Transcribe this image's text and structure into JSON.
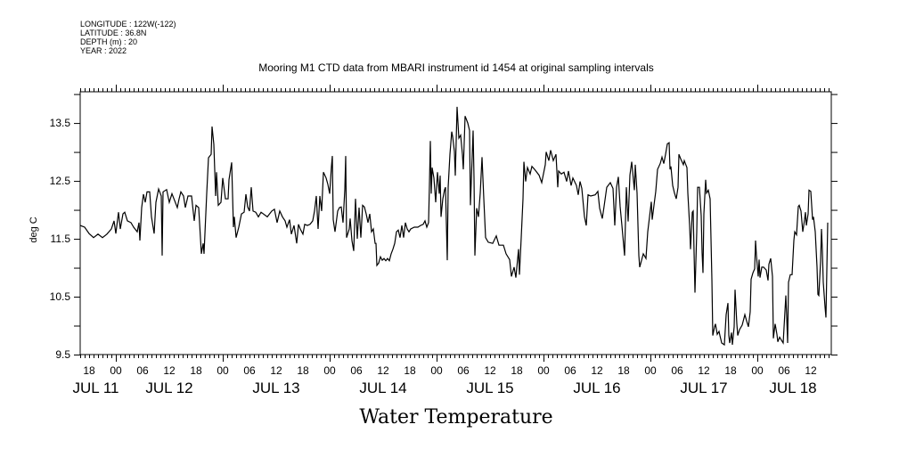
{
  "header": {
    "longitude": "LONGITUDE : 122W(-122)",
    "latitude": "LATITUDE : 36.8N",
    "depth": "DEPTH (m) : 20",
    "year": "YEAR : 2022"
  },
  "chart_data": {
    "type": "line",
    "title": "Mooring M1 CTD data from MBARI instrument id 1454 at original sampling intervals",
    "xlabel": "Water Temperature",
    "ylabel": "deg C",
    "x_units": "hours since JUL 11 00:00",
    "xlim": [
      16,
      184.6
    ],
    "ylim": [
      9.5,
      14.04
    ],
    "y_ticks": [
      "9.5",
      "10.5",
      "11.5",
      "12.5",
      "13.5"
    ],
    "y_minor_step": 0.5,
    "x_tick_labels": [
      {
        "h": 18,
        "label": "18"
      },
      {
        "h": 24,
        "label": "00"
      },
      {
        "h": 30,
        "label": "06"
      },
      {
        "h": 36,
        "label": "12"
      },
      {
        "h": 42,
        "label": "18"
      },
      {
        "h": 48,
        "label": "00"
      },
      {
        "h": 54,
        "label": "06"
      },
      {
        "h": 60,
        "label": "12"
      },
      {
        "h": 66,
        "label": "18"
      },
      {
        "h": 72,
        "label": "00"
      },
      {
        "h": 78,
        "label": "06"
      },
      {
        "h": 84,
        "label": "12"
      },
      {
        "h": 90,
        "label": "18"
      },
      {
        "h": 96,
        "label": "00"
      },
      {
        "h": 102,
        "label": "06"
      },
      {
        "h": 108,
        "label": "12"
      },
      {
        "h": 114,
        "label": "18"
      },
      {
        "h": 120,
        "label": "00"
      },
      {
        "h": 126,
        "label": "06"
      },
      {
        "h": 132,
        "label": "12"
      },
      {
        "h": 138,
        "label": "18"
      },
      {
        "h": 144,
        "label": "00"
      },
      {
        "h": 150,
        "label": "06"
      },
      {
        "h": 156,
        "label": "12"
      },
      {
        "h": 162,
        "label": "18"
      },
      {
        "h": 168,
        "label": "00"
      },
      {
        "h": 174,
        "label": "06"
      },
      {
        "h": 180,
        "label": "12"
      }
    ],
    "date_labels": [
      {
        "h": 19.5,
        "label": "JUL 11"
      },
      {
        "h": 36,
        "label": "JUL 12"
      },
      {
        "h": 60,
        "label": "JUL 13"
      },
      {
        "h": 84,
        "label": "JUL 14"
      },
      {
        "h": 108,
        "label": "JUL 15"
      },
      {
        "h": 132,
        "label": "JUL 16"
      },
      {
        "h": 156,
        "label": "JUL 17"
      },
      {
        "h": 176,
        "label": "JUL 18"
      }
    ],
    "series": [
      {
        "name": "Water Temperature",
        "x": [
          16,
          17,
          18,
          19,
          20,
          21,
          22,
          23,
          23.6,
          24,
          24.6,
          25,
          25.6,
          26,
          26.6,
          27.4,
          28,
          28.8,
          29.2,
          29.4,
          29.8,
          30.2,
          30.6,
          31,
          31.6,
          32,
          32.6,
          33,
          33.6,
          34.2,
          34.4,
          34.6,
          35.4,
          36,
          36.6,
          37.2,
          37.8,
          38.2,
          38.6,
          39.2,
          39.6,
          40.2,
          41,
          41.6,
          42,
          42.6,
          43.2,
          43.6,
          43.8,
          44.4,
          44.8,
          45.4,
          45.6,
          46,
          46.4,
          46.6,
          47,
          47.6,
          48,
          48.6,
          49.2,
          49.4,
          50,
          50.4,
          50.6,
          51,
          51.6,
          52.2,
          52.8,
          53.2,
          53.6,
          54,
          54.4,
          54.8,
          55.4,
          56,
          56.6,
          58,
          59,
          59.6,
          60.2,
          60.8,
          61.4,
          62,
          62.4,
          63,
          63.4,
          64,
          64.6,
          65,
          65.4,
          66,
          66.4,
          67,
          67.6,
          68.2,
          68.6,
          69,
          69.4,
          69.8,
          70.2,
          70.6,
          71.2,
          71.6,
          72,
          72.4,
          72.6,
          72.8,
          73.2,
          73.8,
          74.2,
          74.6,
          75,
          75.4,
          75.6,
          75.8,
          76.4,
          76.6,
          77,
          77.4,
          77.8,
          78.2,
          78.6,
          79,
          79.4,
          79.8,
          80.2,
          80.6,
          81,
          81.4,
          81.8,
          82.2,
          82.4,
          82.6,
          83,
          83.4,
          83.8,
          84.2,
          84.6,
          85,
          85.4,
          85.8,
          86.2,
          86.6,
          87,
          87.4,
          87.8,
          88.2,
          88.6,
          89,
          89.4,
          89.8,
          90.2,
          91,
          91.8,
          92.4,
          93,
          93.4,
          93.8,
          94.2,
          94.4,
          94.6,
          94.8,
          95,
          95.4,
          95.8,
          96.2,
          96.6,
          96.8,
          97,
          97.4,
          97.8,
          98,
          98.4,
          98.6,
          99,
          99.4,
          99.6,
          100,
          100.2,
          100.6,
          101,
          101.4,
          101.8,
          102,
          102.4,
          103,
          103.4,
          103.6,
          104.2,
          104.4,
          104.6,
          105,
          105.4,
          105.8,
          106.2,
          106.6,
          107,
          107.6,
          108.6,
          109.4,
          110,
          111,
          111.6,
          112.4,
          112.8,
          113.4,
          113.8,
          114.4,
          114.6,
          115,
          115.4,
          115.6,
          116,
          116.4,
          117,
          117.4,
          118,
          119,
          119.6,
          120.4,
          120.6,
          121.2,
          121.6,
          122.2,
          122.8,
          123.2,
          123.4,
          124,
          124.6,
          125.2,
          125.6,
          126.2,
          126.6,
          127.4,
          127.8,
          128.2,
          128.6,
          129.2,
          129.6,
          130,
          130.6,
          131.6,
          132.2,
          132.6,
          133.2,
          133.6,
          134.2,
          135,
          135.6,
          136,
          136.4,
          136.8,
          137.2,
          137.6,
          138.2,
          138.6,
          139,
          139.4,
          139.8,
          140.4,
          140.6,
          141,
          141.4,
          141.6,
          142.4,
          143,
          143.4,
          143.8,
          144.2,
          144.4,
          144.8,
          145.2,
          145.6,
          146.2,
          146.6,
          147,
          147.4,
          147.8,
          148.2,
          148.4,
          148.6,
          149,
          149.4,
          149.8,
          150.2,
          150.4,
          150.8,
          151.4,
          151.6,
          152.2,
          152.4,
          152.8,
          153,
          153.4,
          153.6,
          153.8,
          154,
          154.4,
          154.6,
          155,
          155.4,
          155.6,
          155.8,
          156,
          156.4,
          156.6,
          157,
          157.4,
          157.8,
          158,
          158.4,
          158.6,
          159,
          159.4,
          159.6,
          160,
          160.6,
          161,
          161.4,
          161.6,
          161.8,
          162.2,
          162.4,
          162.8,
          163,
          163.4,
          163.6,
          164,
          164.6,
          165.2,
          165.6,
          166,
          166.4,
          166.6,
          167,
          167.4,
          167.6,
          167.8,
          168.2,
          168.4,
          168.6,
          169,
          169.4,
          170,
          170.4,
          170.6,
          171,
          171.4,
          171.6,
          172,
          172.4,
          172.6,
          173,
          173.4,
          173.8,
          174.4,
          174.6,
          174.8,
          175,
          175.4,
          175.8,
          176.2,
          176.4,
          176.8,
          177.2,
          177.4,
          177.8,
          178.2,
          178.6,
          178.8,
          179,
          179.4,
          179.6,
          180,
          180.4,
          180.6,
          181,
          181.4,
          181.6,
          181.8,
          182.2,
          182.4,
          182.6,
          182.8,
          183.2,
          183.4,
          183.6,
          183.8
        ],
        "y": [
          11.73,
          11.7,
          11.59,
          11.52,
          11.58,
          11.52,
          11.58,
          11.67,
          11.81,
          11.59,
          11.96,
          11.67,
          11.93,
          11.96,
          11.81,
          11.78,
          11.7,
          11.62,
          11.78,
          11.47,
          12.04,
          12.27,
          12.13,
          12.31,
          12.31,
          11.88,
          11.59,
          12.13,
          12.36,
          12.24,
          11.21,
          12.31,
          12.35,
          12.13,
          12.28,
          12.16,
          12.04,
          12.19,
          12.31,
          12.24,
          12.04,
          12.24,
          12.24,
          11.81,
          12.08,
          12.04,
          11.24,
          11.42,
          11.24,
          12.28,
          12.9,
          12.96,
          13.44,
          13.13,
          12.24,
          12.65,
          12.08,
          12.13,
          12.55,
          12.19,
          12.19,
          12.52,
          12.82,
          11.7,
          11.88,
          11.52,
          11.7,
          11.93,
          11.96,
          12.27,
          12.05,
          11.98,
          12.39,
          11.98,
          11.96,
          11.88,
          11.96,
          11.88,
          11.98,
          12.01,
          11.78,
          11.98,
          11.88,
          11.81,
          11.7,
          11.83,
          11.58,
          11.73,
          11.42,
          11.75,
          11.67,
          11.58,
          11.75,
          11.73,
          11.75,
          11.81,
          11.98,
          12.24,
          11.67,
          12.24,
          11.98,
          12.65,
          12.55,
          12.44,
          12.28,
          12.75,
          12.93,
          11.83,
          11.62,
          11.98,
          12.04,
          12.05,
          11.78,
          12.35,
          12.93,
          11.52,
          11.67,
          11.85,
          11.47,
          11.29,
          12.19,
          11.5,
          12.04,
          11.52,
          12.08,
          12.05,
          11.93,
          11.78,
          11.93,
          11.62,
          11.67,
          11.42,
          11.42,
          11.04,
          11.08,
          11.19,
          11.13,
          11.16,
          11.12,
          11.16,
          11.12,
          11.24,
          11.32,
          11.42,
          11.62,
          11.65,
          11.52,
          11.73,
          11.52,
          11.78,
          11.67,
          11.62,
          11.67,
          11.7,
          11.7,
          11.73,
          11.75,
          11.81,
          11.7,
          11.78,
          12.44,
          13.19,
          12.28,
          12.73,
          12.55,
          12.13,
          12.65,
          12.28,
          12.59,
          11.88,
          12.19,
          12.35,
          12.39,
          11.13,
          12.39,
          12.96,
          13.35,
          13.27,
          13.01,
          12.59,
          13.78,
          13.24,
          13.29,
          12.96,
          12.7,
          13.62,
          13.5,
          13.37,
          12.08,
          13.37,
          12.55,
          11.21,
          12.03,
          11.88,
          12.29,
          12.91,
          12.19,
          11.52,
          11.44,
          11.42,
          11.55,
          11.39,
          11.39,
          11.24,
          11.14,
          10.85,
          11.01,
          10.83,
          11.32,
          10.88,
          11.52,
          12.19,
          12.83,
          12.49,
          12.73,
          12.62,
          12.75,
          12.7,
          12.6,
          12.47,
          12.78,
          13.0,
          12.85,
          13.03,
          12.85,
          12.96,
          12.39,
          12.67,
          12.62,
          12.65,
          12.49,
          12.67,
          12.42,
          12.55,
          12.42,
          12.26,
          12.49,
          12.37,
          11.88,
          11.73,
          12.26,
          12.24,
          12.26,
          12.32,
          12.03,
          11.85,
          12.06,
          12.39,
          12.47,
          12.37,
          11.73,
          12.39,
          12.57,
          12.06,
          11.73,
          11.21,
          12.39,
          11.8,
          12.6,
          12.83,
          12.34,
          12.78,
          12.29,
          11.21,
          11.01,
          11.24,
          11.16,
          11.62,
          11.88,
          12.14,
          11.83,
          12.08,
          12.32,
          12.7,
          12.8,
          12.91,
          12.8,
          12.96,
          13.14,
          13.16,
          12.7,
          12.75,
          12.42,
          12.29,
          12.19,
          12.39,
          12.96,
          12.88,
          12.78,
          12.85,
          12.73,
          12.29,
          11.73,
          11.32,
          11.96,
          11.98,
          11.26,
          10.57,
          11.62,
          12.39,
          12.39,
          11.9,
          11.26,
          10.91,
          11.93,
          12.52,
          12.29,
          12.34,
          12.19,
          10.8,
          9.83,
          9.98,
          10.03,
          9.85,
          9.9,
          9.83,
          9.7,
          9.67,
          10.19,
          10.39,
          9.83,
          9.7,
          9.88,
          9.67,
          9.98,
          10.62,
          10.03,
          9.83,
          9.93,
          10.01,
          10.19,
          10.08,
          9.98,
          10.24,
          10.8,
          10.91,
          10.98,
          11.47,
          11.21,
          10.85,
          11.14,
          10.83,
          11.01,
          11.01,
          10.96,
          10.78,
          11.06,
          11.16,
          10.85,
          9.78,
          10.03,
          9.85,
          9.72,
          9.8,
          9.75,
          9.7,
          10.52,
          10.14,
          9.7,
          10.75,
          10.88,
          10.88,
          11.47,
          11.62,
          11.57,
          12.06,
          12.08,
          11.98,
          11.62,
          11.83,
          11.96,
          11.73,
          11.93,
          12.34,
          12.32,
          11.83,
          11.88,
          11.62,
          11.01,
          10.54,
          10.52,
          11.11,
          11.67,
          11.29,
          10.75,
          10.32,
          10.14,
          10.96,
          11.78
        ]
      }
    ],
    "grid": false,
    "legend": "none"
  }
}
